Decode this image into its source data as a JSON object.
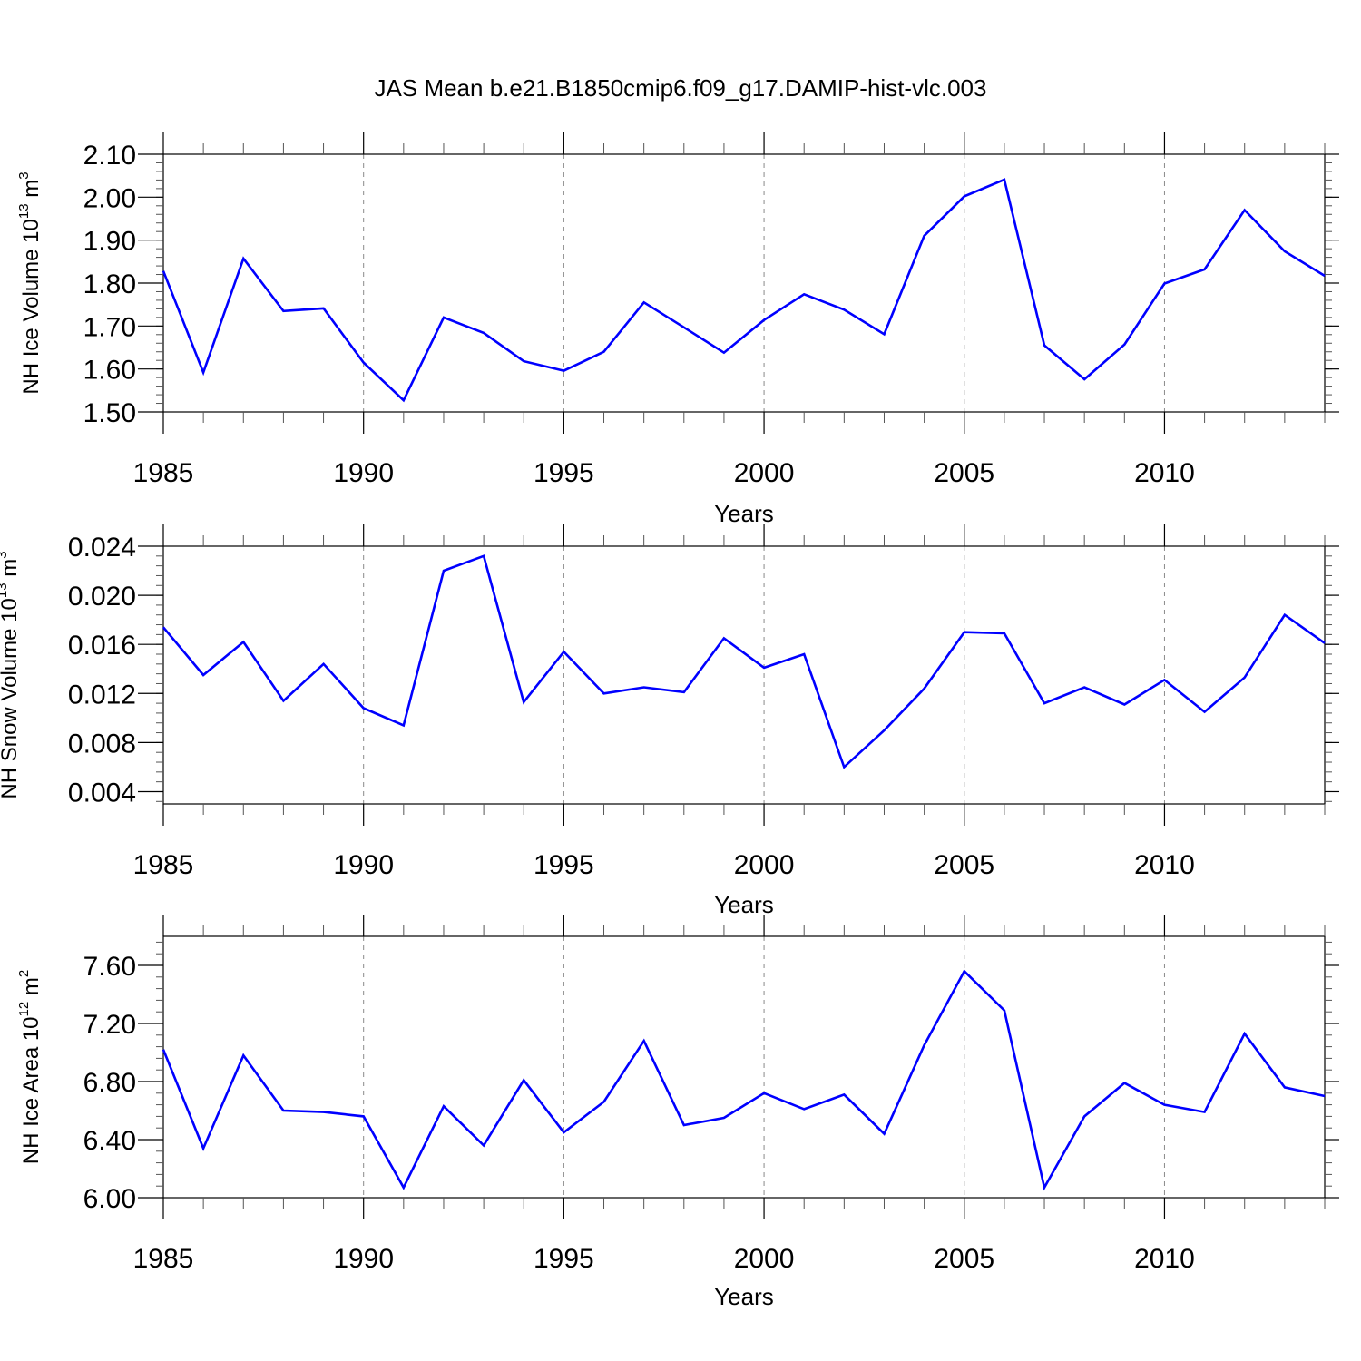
{
  "chart_data": [
    {
      "type": "line",
      "title": "JAS Mean b.e21.B1850cmip6.f09_g17.DAMIP-hist-vlc.003",
      "xlabel": "Years",
      "ylabel": "NH Ice Volume 10",
      "ylabel_exp": "13",
      "ylabel_unit": " m",
      "ylabel_unit_exp": "3",
      "ylim": [
        1.5,
        2.1
      ],
      "yticks": [
        1.5,
        1.6,
        1.7,
        1.8,
        1.9,
        2.0,
        2.1
      ],
      "ytick_labels": [
        "1.50",
        "1.60",
        "1.70",
        "1.80",
        "1.90",
        "2.00",
        "2.10"
      ],
      "xlim": [
        1985,
        2014
      ],
      "xticks": [
        1985,
        1990,
        1995,
        2000,
        2005,
        2010
      ],
      "xtick_labels": [
        "1985",
        "1990",
        "1995",
        "2000",
        "2005",
        "2010"
      ],
      "line_color": "#0000ff",
      "x": [
        1985,
        1986,
        1987,
        1988,
        1989,
        1990,
        1991,
        1992,
        1993,
        1994,
        1995,
        1996,
        1997,
        1998,
        1999,
        2000,
        2001,
        2002,
        2003,
        2004,
        2005,
        2006,
        2007,
        2008,
        2009,
        2010,
        2011,
        2012,
        2013,
        2014
      ],
      "values": [
        1.828,
        1.592,
        1.857,
        1.735,
        1.741,
        1.615,
        1.527,
        1.72,
        1.684,
        1.618,
        1.596,
        1.64,
        1.755,
        1.697,
        1.638,
        1.714,
        1.774,
        1.738,
        1.681,
        1.91,
        2.002,
        2.041,
        1.655,
        1.576,
        1.657,
        1.799,
        1.832,
        1.97,
        1.874,
        1.817
      ]
    },
    {
      "type": "line",
      "title": "",
      "xlabel": "Years",
      "ylabel": "NH Snow Volume 10",
      "ylabel_exp": "13",
      "ylabel_unit": " m",
      "ylabel_unit_exp": "3",
      "ylim": [
        0.003,
        0.024
      ],
      "yticks": [
        0.004,
        0.008,
        0.012,
        0.016,
        0.02,
        0.024
      ],
      "ytick_labels": [
        "0.004",
        "0.008",
        "0.012",
        "0.016",
        "0.020",
        "0.024"
      ],
      "xlim": [
        1985,
        2014
      ],
      "xticks": [
        1985,
        1990,
        1995,
        2000,
        2005,
        2010
      ],
      "xtick_labels": [
        "1985",
        "1990",
        "1995",
        "2000",
        "2005",
        "2010"
      ],
      "line_color": "#0000ff",
      "x": [
        1985,
        1986,
        1987,
        1988,
        1989,
        1990,
        1991,
        1992,
        1993,
        1994,
        1995,
        1996,
        1997,
        1998,
        1999,
        2000,
        2001,
        2002,
        2003,
        2004,
        2005,
        2006,
        2007,
        2008,
        2009,
        2010,
        2011,
        2012,
        2013,
        2014
      ],
      "values": [
        0.0174,
        0.0135,
        0.0162,
        0.0114,
        0.0144,
        0.0108,
        0.0094,
        0.022,
        0.0232,
        0.0113,
        0.0154,
        0.012,
        0.0125,
        0.0121,
        0.0165,
        0.0141,
        0.0152,
        0.006,
        0.009,
        0.0124,
        0.017,
        0.0169,
        0.0112,
        0.0125,
        0.0111,
        0.0131,
        0.0105,
        0.0133,
        0.0184,
        0.0161
      ]
    },
    {
      "type": "line",
      "title": "",
      "xlabel": "Years",
      "ylabel": "NH Ice Area 10",
      "ylabel_exp": "12",
      "ylabel_unit": " m",
      "ylabel_unit_exp": "2",
      "ylim": [
        6.0,
        7.8
      ],
      "yticks": [
        6.0,
        6.4,
        6.8,
        7.2,
        7.6
      ],
      "ytick_labels": [
        "6.00",
        "6.40",
        "6.80",
        "7.20",
        "7.60"
      ],
      "xlim": [
        1985,
        2014
      ],
      "xticks": [
        1985,
        1990,
        1995,
        2000,
        2005,
        2010
      ],
      "xtick_labels": [
        "1985",
        "1990",
        "1995",
        "2000",
        "2005",
        "2010"
      ],
      "line_color": "#0000ff",
      "x": [
        1985,
        1986,
        1987,
        1988,
        1989,
        1990,
        1991,
        1992,
        1993,
        1994,
        1995,
        1996,
        1997,
        1998,
        1999,
        2000,
        2001,
        2002,
        2003,
        2004,
        2005,
        2006,
        2007,
        2008,
        2009,
        2010,
        2011,
        2012,
        2013,
        2014
      ],
      "values": [
        7.02,
        6.34,
        6.98,
        6.6,
        6.59,
        6.56,
        6.07,
        6.63,
        6.36,
        6.81,
        6.45,
        6.66,
        7.08,
        6.5,
        6.55,
        6.72,
        6.61,
        6.71,
        6.44,
        7.05,
        7.56,
        7.29,
        6.07,
        6.56,
        6.79,
        6.64,
        6.59,
        7.13,
        6.76,
        6.7
      ]
    }
  ]
}
